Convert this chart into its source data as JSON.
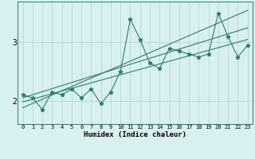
{
  "xlabel": "Humidex (Indice chaleur)",
  "x_values": [
    0,
    1,
    2,
    3,
    4,
    5,
    6,
    7,
    8,
    9,
    10,
    11,
    12,
    13,
    14,
    15,
    16,
    17,
    18,
    19,
    20,
    21,
    22,
    23
  ],
  "y_data": [
    2.1,
    2.05,
    1.85,
    2.15,
    2.1,
    2.2,
    2.05,
    2.2,
    1.95,
    2.15,
    2.5,
    3.4,
    3.05,
    2.65,
    2.55,
    2.9,
    2.85,
    2.8,
    2.75,
    2.8,
    3.5,
    3.1,
    2.75,
    2.95
  ],
  "line_color": "#2d7d6e",
  "bg_color": "#d8f0ef",
  "grid_color": "#aed4d0",
  "text_color": "#000000",
  "ylim": [
    1.6,
    3.7
  ],
  "yticks": [
    2,
    3
  ],
  "xlim": [
    -0.5,
    23.5
  ],
  "trend1_start": 1.98,
  "trend1_end": 3.05,
  "trend2_start": 2.05,
  "trend2_end": 3.25,
  "trend3_start": 1.88,
  "trend3_end": 3.55
}
